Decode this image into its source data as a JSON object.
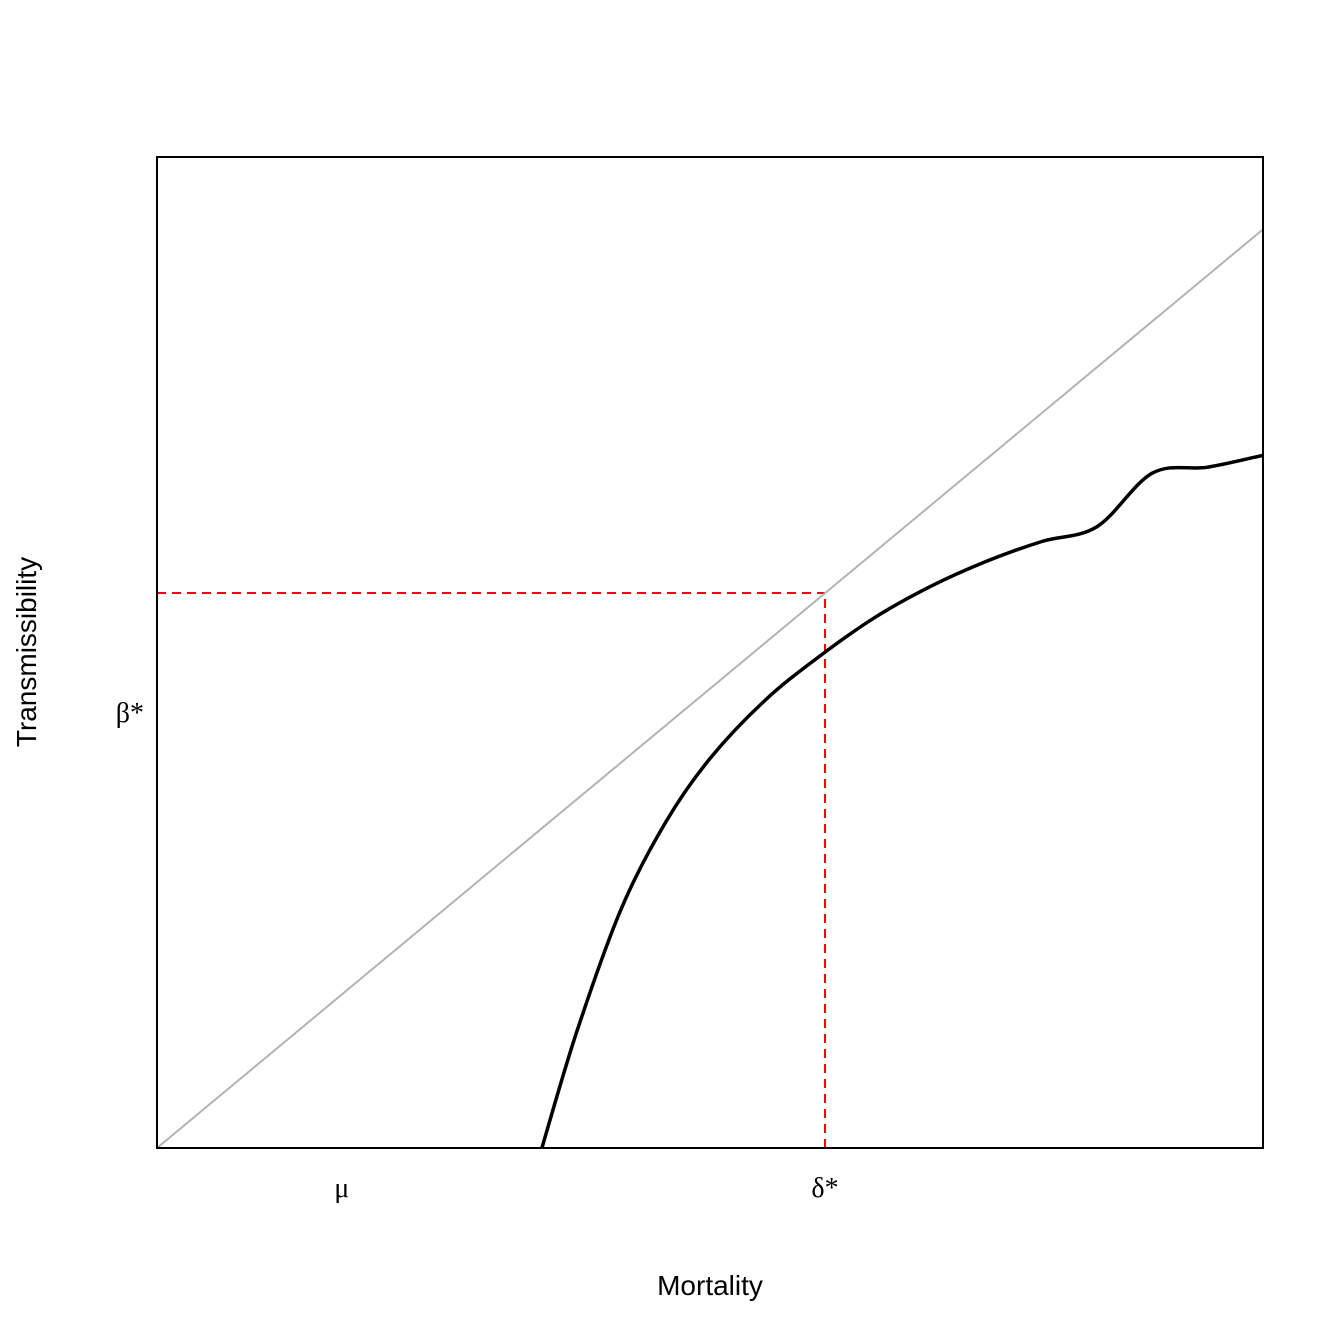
{
  "chart_data": {
    "type": "line",
    "title": "",
    "xlabel": "Mortality",
    "ylabel": "Transmissibility",
    "xlim": [
      0,
      1
    ],
    "ylim": [
      0,
      1
    ],
    "grid": false,
    "legend": "none",
    "x_tick_labels": [
      {
        "label": "μ",
        "x": 0.167
      },
      {
        "label": "δ*",
        "x": 0.604
      }
    ],
    "y_tick_labels": [
      {
        "label": "β*",
        "y": 0.44
      }
    ],
    "series": [
      {
        "color": "#b3b3b3",
        "style": "solid",
        "x": [
          0,
          1
        ],
        "y": [
          0,
          0.927
        ]
      },
      {
        "color": "#000000",
        "style": "solid",
        "x": [
          0.348,
          0.38,
          0.42,
          0.46,
          0.5,
          0.55,
          0.6,
          0.65,
          0.7,
          0.75,
          0.8,
          0.85,
          0.9,
          0.95,
          1.0
        ],
        "y": [
          0,
          0.119,
          0.242,
          0.329,
          0.393,
          0.452,
          0.497,
          0.536,
          0.567,
          0.592,
          0.612,
          0.627,
          0.681,
          0.687,
          0.699
        ]
      }
    ],
    "reference_lines": [
      {
        "color": "#ff0000",
        "style": "dashed",
        "x": [
          0,
          0.604
        ],
        "y": [
          0.56,
          0.56
        ]
      },
      {
        "color": "#ff0000",
        "style": "dashed",
        "x": [
          0.604,
          0.604
        ],
        "y": [
          0,
          0.56
        ]
      }
    ]
  }
}
